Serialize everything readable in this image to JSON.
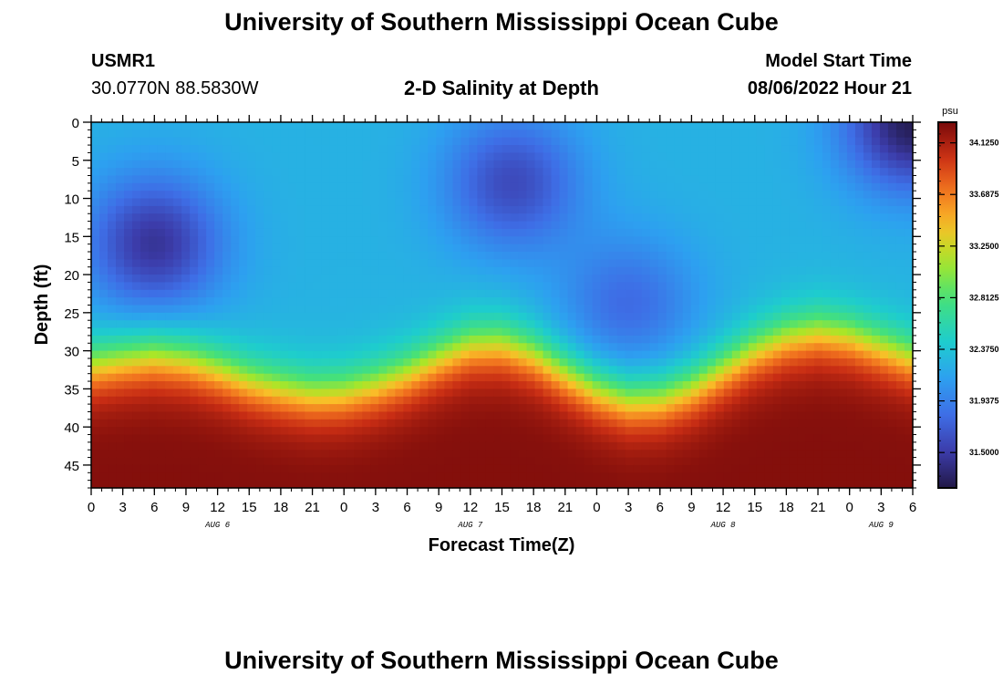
{
  "page": {
    "title": "University of Southern Mississippi Ocean Cube",
    "station_id": "USMR1",
    "station_coords": "30.0770N  88.5830W",
    "plot_title": "2-D Salinity at Depth",
    "model_start_label": "Model Start Time",
    "model_start_value": "08/06/2022 Hour 21",
    "footer_title": "University of Southern Mississippi Ocean Cube"
  },
  "chart_data": {
    "type": "heatmap",
    "title": "2-D Salinity at Depth",
    "xlabel": "Forecast Time(Z)",
    "ylabel": "Depth (ft)",
    "xlim": [
      0,
      78
    ],
    "ylim": [
      48,
      0
    ],
    "x_ticks": [
      0,
      3,
      6,
      9,
      12,
      15,
      18,
      21,
      24,
      27,
      30,
      33,
      36,
      39,
      42,
      45,
      48,
      51,
      54,
      57,
      60,
      63,
      66,
      69,
      72,
      75,
      78
    ],
    "x_tick_labels": [
      "0",
      "3",
      "6",
      "9",
      "12",
      "15",
      "18",
      "21",
      "0",
      "3",
      "6",
      "9",
      "12",
      "15",
      "18",
      "21",
      "0",
      "3",
      "6",
      "9",
      "12",
      "15",
      "18",
      "21",
      "0",
      "3",
      "6"
    ],
    "y_ticks": [
      0,
      5,
      10,
      15,
      20,
      25,
      30,
      35,
      40,
      45
    ],
    "date_labels": [
      {
        "x": 12,
        "label": "AUG 6"
      },
      {
        "x": 36,
        "label": "AUG 7"
      },
      {
        "x": 60,
        "label": "AUG 8"
      },
      {
        "x": 75,
        "label": "AUG 9"
      }
    ],
    "colorbar": {
      "unit": "psu",
      "min": 31.2,
      "max": 34.3,
      "ticks": [
        34.125,
        33.6875,
        33.25,
        32.8125,
        32.375,
        31.9375,
        31.5
      ],
      "tick_labels": [
        "34.1250",
        "33.6875",
        "33.2500",
        "32.8125",
        "32.3750",
        "31.9375",
        "31.5000"
      ]
    },
    "halocline_depth_ft": {
      "x": [
        0,
        3,
        6,
        9,
        12,
        15,
        18,
        21,
        24,
        27,
        30,
        33,
        36,
        39,
        42,
        45,
        48,
        51,
        54,
        57,
        60,
        63,
        66,
        69,
        72,
        75,
        78
      ],
      "depth": [
        28.5,
        27.8,
        27.3,
        27.8,
        29.0,
        30.5,
        31.5,
        32.2,
        32.0,
        31.0,
        29.5,
        27.5,
        25.8,
        25.6,
        27.0,
        29.5,
        31.8,
        33.2,
        33.0,
        31.5,
        29.0,
        26.5,
        24.8,
        24.0,
        24.6,
        26.0,
        27.5
      ]
    },
    "fresh_cores": [
      {
        "x": 6,
        "depth": 16,
        "value": 31.45
      },
      {
        "x": 40,
        "depth": 8,
        "value": 31.6
      },
      {
        "x": 51,
        "depth": 24,
        "value": 31.8
      },
      {
        "x": 78,
        "depth": 0,
        "value": 31.25
      }
    ],
    "surface_value": 32.25,
    "bottom_value": 34.2
  }
}
